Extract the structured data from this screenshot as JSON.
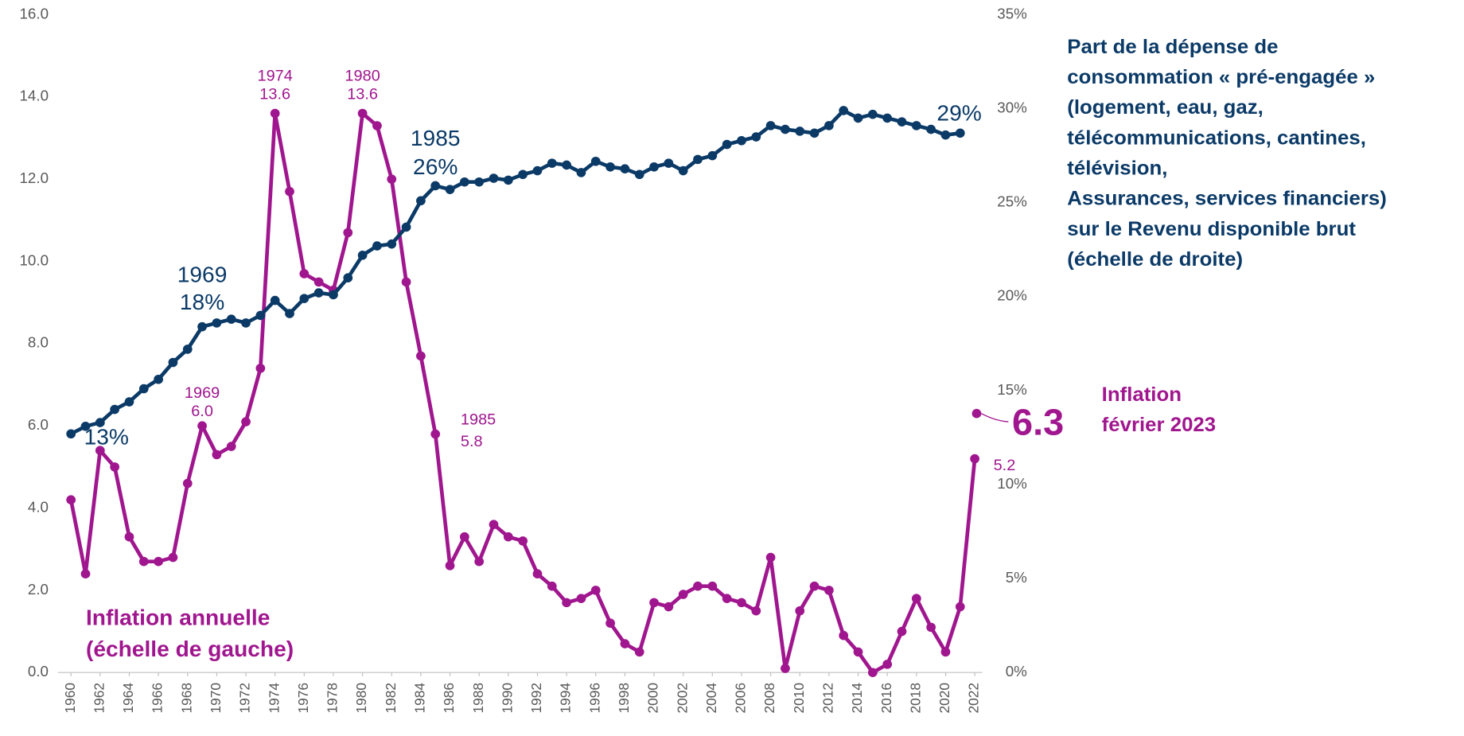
{
  "chart_data": {
    "type": "line",
    "x": [
      1960,
      1961,
      1962,
      1963,
      1964,
      1965,
      1966,
      1967,
      1968,
      1969,
      1970,
      1971,
      1972,
      1973,
      1974,
      1975,
      1976,
      1977,
      1978,
      1979,
      1980,
      1981,
      1982,
      1983,
      1984,
      1985,
      1986,
      1987,
      1988,
      1989,
      1990,
      1991,
      1992,
      1993,
      1994,
      1995,
      1996,
      1997,
      1998,
      1999,
      2000,
      2001,
      2002,
      2003,
      2004,
      2005,
      2006,
      2007,
      2008,
      2009,
      2010,
      2011,
      2012,
      2013,
      2014,
      2015,
      2016,
      2017,
      2018,
      2019,
      2020,
      2021,
      2022
    ],
    "xticks": [
      1960,
      1962,
      1964,
      1966,
      1968,
      1970,
      1972,
      1974,
      1976,
      1978,
      1980,
      1982,
      1984,
      1986,
      1988,
      1990,
      1992,
      1994,
      1996,
      1998,
      2000,
      2002,
      2004,
      2006,
      2008,
      2010,
      2012,
      2014,
      2016,
      2018,
      2020,
      2022
    ],
    "ylim": [
      0,
      16
    ],
    "yticks": [
      {
        "value": 0,
        "label": "0.0"
      },
      {
        "value": 2,
        "label": "2.0"
      },
      {
        "value": 4,
        "label": "4.0"
      },
      {
        "value": 6,
        "label": "6.0"
      },
      {
        "value": 8,
        "label": "8.0"
      },
      {
        "value": 10,
        "label": "10.0"
      },
      {
        "value": 12,
        "label": "12.0"
      },
      {
        "value": 14,
        "label": "14.0"
      },
      {
        "value": 16,
        "label": "16.0"
      }
    ],
    "y2lim": [
      0,
      35
    ],
    "y2ticks": [
      {
        "value": 0,
        "label": "0%"
      },
      {
        "value": 5,
        "label": "5%"
      },
      {
        "value": 10,
        "label": "10%"
      },
      {
        "value": 15,
        "label": "15%"
      },
      {
        "value": 20,
        "label": "20%"
      },
      {
        "value": 25,
        "label": "25%"
      },
      {
        "value": 30,
        "label": "30%"
      },
      {
        "value": 35,
        "label": "35%"
      }
    ],
    "series": [
      {
        "name": [
          "Inflation annuelle",
          "(échelle de gauche)"
        ],
        "color": "#a0168e",
        "values": [
          4.2,
          2.4,
          5.4,
          5.0,
          3.3,
          2.7,
          2.7,
          2.8,
          4.6,
          6.0,
          5.3,
          5.5,
          6.1,
          7.4,
          13.6,
          11.7,
          9.7,
          9.5,
          9.3,
          10.7,
          13.6,
          13.3,
          12.0,
          9.5,
          7.7,
          5.8,
          2.6,
          3.3,
          2.7,
          3.6,
          3.3,
          3.2,
          2.4,
          2.1,
          1.7,
          1.8,
          2.0,
          1.2,
          0.7,
          0.5,
          1.7,
          1.6,
          1.9,
          2.1,
          2.1,
          1.8,
          1.7,
          1.5,
          2.8,
          0.1,
          1.5,
          2.1,
          2.0,
          0.9,
          0.5,
          0.0,
          0.2,
          1.0,
          1.8,
          1.1,
          0.5,
          1.6,
          5.2
        ],
        "annotations": [
          {
            "x": 1974,
            "lines": [
              "1974",
              "13.6"
            ]
          },
          {
            "x": 1980,
            "lines": [
              "1980",
              "13.6"
            ]
          },
          {
            "x": 1969,
            "lines": [
              "1969",
              "6.0"
            ]
          },
          {
            "x": 1985,
            "lines": [
              "1985",
              "5.8"
            ]
          },
          {
            "x": 2022,
            "lines": [
              "5.2"
            ]
          }
        ]
      },
      {
        "name": [
          "Part de la dépense de",
          "consommation « pré-engagée »",
          "(logement, eau, gaz,",
          "télécommunications, cantines,",
          "télévision,",
          "Assurances, services financiers)",
          "sur le Revenu disponible brut",
          "(échelle de droite)"
        ],
        "color": "#0b3a67",
        "axis": "y2",
        "values": [
          12.7,
          13.1,
          13.3,
          14.0,
          14.4,
          15.1,
          15.6,
          16.5,
          17.2,
          18.4,
          18.6,
          18.8,
          18.6,
          19.0,
          19.8,
          19.1,
          19.9,
          20.2,
          20.1,
          21.0,
          22.2,
          22.7,
          22.8,
          23.7,
          25.1,
          25.9,
          25.7,
          26.1,
          26.1,
          26.3,
          26.2,
          26.5,
          26.7,
          27.1,
          27.0,
          26.6,
          27.2,
          26.9,
          26.8,
          26.5,
          26.9,
          27.1,
          26.7,
          27.3,
          27.5,
          28.1,
          28.3,
          28.5,
          29.1,
          28.9,
          28.8,
          28.7,
          29.1,
          29.9,
          29.5,
          29.7,
          29.5,
          29.3,
          29.1,
          28.9,
          28.6,
          28.7,
          null
        ],
        "annotations": [
          {
            "x": 1960,
            "lines": [
              "13%"
            ]
          },
          {
            "x": 1969,
            "lines": [
              "1969",
              "18%"
            ]
          },
          {
            "x": 1985,
            "lines": [
              "1985",
              "26%"
            ]
          },
          {
            "x": 2021,
            "lines": [
              "29%"
            ]
          }
        ]
      }
    ],
    "latest": {
      "name": [
        "Inflation",
        "février 2023"
      ],
      "value": 6.3,
      "label": "6.3",
      "color": "#a0168e"
    }
  }
}
